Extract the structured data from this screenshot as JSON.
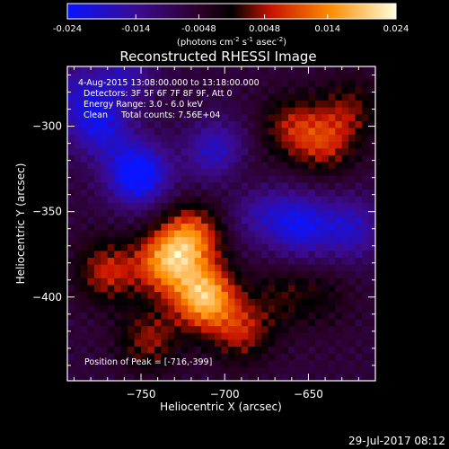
{
  "colorbar": {
    "ticks": [
      "-0.024",
      "-0.014",
      "-0.0048",
      "0.0048",
      "0.014",
      "0.024"
    ],
    "units": "(photons cm",
    "units_exp1": "-2",
    "units_mid": " s",
    "units_exp2": "-1",
    "units_end": " asec",
    "units_exp3": "-2",
    "units_close": ")",
    "colors": [
      "#0a14ff",
      "#3c0a8c",
      "#280020",
      "#000000",
      "#c81400",
      "#ff8c00",
      "#ffffdc"
    ]
  },
  "chart_data": {
    "type": "heatmap",
    "title": "Reconstructed RHESSI Image",
    "xlabel": "Heliocentric X (arcsec)",
    "ylabel": "Heliocentric Y (arcsec)",
    "xlim": [
      -794,
      -610
    ],
    "ylim": [
      -449,
      -265
    ],
    "xticks": [
      -750,
      -700,
      -650
    ],
    "yticks": [
      -300,
      -350,
      -400
    ],
    "zrange": [
      -0.024,
      0.024
    ],
    "info": [
      "4-Aug-2015 13:08:00.000 to 13:18:00.000",
      "Detectors: 3F 5F 6F 7F 8F 9F, Att 0",
      "Energy Range: 3.0 - 6.0 keV",
      "Clean     Total counts: 7.56E+04"
    ],
    "peak_label": "Position of Peak = [-716,-399]",
    "peak": [
      -716,
      -399
    ],
    "features": [
      {
        "x": -712,
        "y": -400,
        "value": 0.024
      },
      {
        "x": -735,
        "y": -380,
        "value": 0.019
      },
      {
        "x": -720,
        "y": -365,
        "value": 0.017
      },
      {
        "x": -770,
        "y": -385,
        "value": 0.012
      },
      {
        "x": -690,
        "y": -420,
        "value": 0.011
      },
      {
        "x": -745,
        "y": -425,
        "value": 0.01
      },
      {
        "x": -665,
        "y": -400,
        "value": 0.006
      },
      {
        "x": -640,
        "y": -400,
        "value": 0.004
      },
      {
        "x": -640,
        "y": -310,
        "value": 0.011
      },
      {
        "x": -660,
        "y": -300,
        "value": 0.01
      },
      {
        "x": -625,
        "y": -290,
        "value": 0.008
      },
      {
        "x": -690,
        "y": -330,
        "value": 0.004
      },
      {
        "x": -752,
        "y": -328,
        "value": -0.021
      },
      {
        "x": -775,
        "y": -300,
        "value": -0.014
      },
      {
        "x": -705,
        "y": -315,
        "value": -0.013
      },
      {
        "x": -790,
        "y": -280,
        "value": -0.009
      },
      {
        "x": -655,
        "y": -358,
        "value": -0.015
      },
      {
        "x": -625,
        "y": -360,
        "value": -0.012
      },
      {
        "x": -680,
        "y": -350,
        "value": -0.009
      },
      {
        "x": -760,
        "y": -270,
        "value": -0.01
      }
    ]
  },
  "footer": {
    "date": "29-Jul-2017 08:12"
  }
}
